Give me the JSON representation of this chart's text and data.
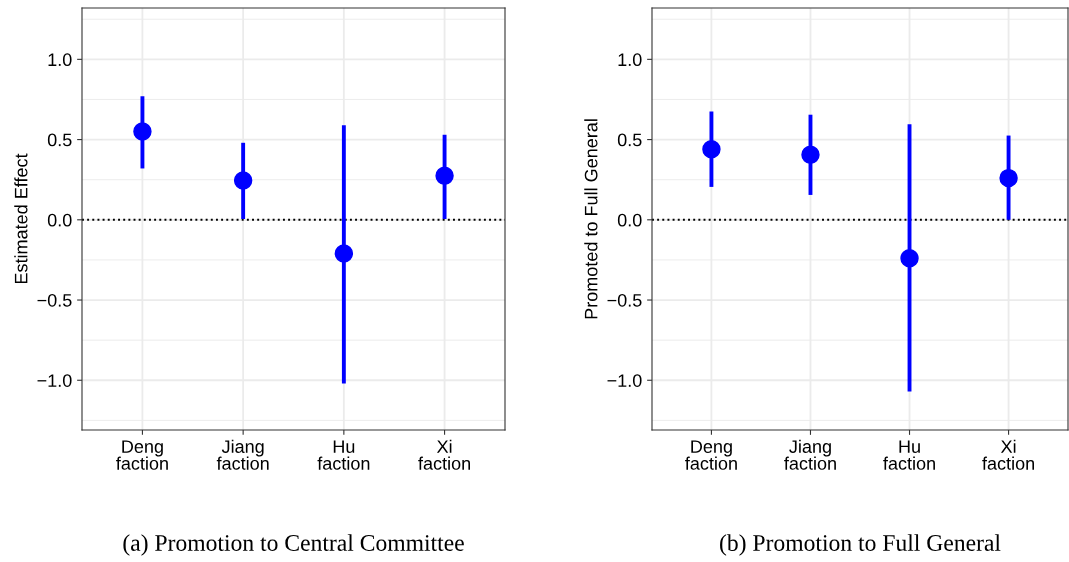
{
  "chart_data": [
    {
      "type": "scatter",
      "ylabel": "Estimated Effect",
      "categories": [
        "Deng\nfaction",
        "Jiang\nfaction",
        "Hu\nfaction",
        "Xi\nfaction"
      ],
      "series": [
        {
          "color": "#0000ff",
          "values": [
            0.55,
            0.245,
            -0.21,
            0.275
          ],
          "errors": [
            [
              0.32,
              0.77
            ],
            [
              0.005,
              0.48
            ],
            [
              -1.02,
              0.59
            ],
            [
              0.005,
              0.53
            ]
          ]
        }
      ],
      "ylim": [
        -1.31,
        1.32
      ],
      "yticks": [
        {
          "value": -1.0,
          "label": "−1.0"
        },
        {
          "value": -0.5,
          "label": "−0.5"
        },
        {
          "value": 0.0,
          "label": "0.0"
        },
        {
          "value": 0.5,
          "label": "0.5"
        },
        {
          "value": 1.0,
          "label": "1.0"
        }
      ],
      "ref_lines": [
        {
          "axis": "y",
          "value": 0,
          "color": "#000000",
          "line_style": "dotted"
        }
      ],
      "marker": "circle",
      "grid": true,
      "legend": false,
      "annotations": [
        "(a) Promotion to Central Committee"
      ]
    },
    {
      "type": "scatter",
      "ylabel": "Promoted to Full General",
      "categories": [
        "Deng\nfaction",
        "Jiang\nfaction",
        "Hu\nfaction",
        "Xi\nfaction"
      ],
      "series": [
        {
          "color": "#0000ff",
          "values": [
            0.44,
            0.405,
            -0.24,
            0.26
          ],
          "errors": [
            [
              0.205,
              0.675
            ],
            [
              0.155,
              0.655
            ],
            [
              -1.07,
              0.595
            ],
            [
              0.0,
              0.525
            ]
          ]
        }
      ],
      "ylim": [
        -1.31,
        1.32
      ],
      "yticks": [
        {
          "value": -1.0,
          "label": "−1.0"
        },
        {
          "value": -0.5,
          "label": "−0.5"
        },
        {
          "value": 0.0,
          "label": "0.0"
        },
        {
          "value": 0.5,
          "label": "0.5"
        },
        {
          "value": 1.0,
          "label": "1.0"
        }
      ],
      "ref_lines": [
        {
          "axis": "y",
          "value": 0,
          "color": "#000000",
          "line_style": "dotted"
        }
      ],
      "marker": "circle",
      "grid": true,
      "legend": false,
      "annotations": [
        "(b) Promotion to Full General"
      ]
    }
  ]
}
